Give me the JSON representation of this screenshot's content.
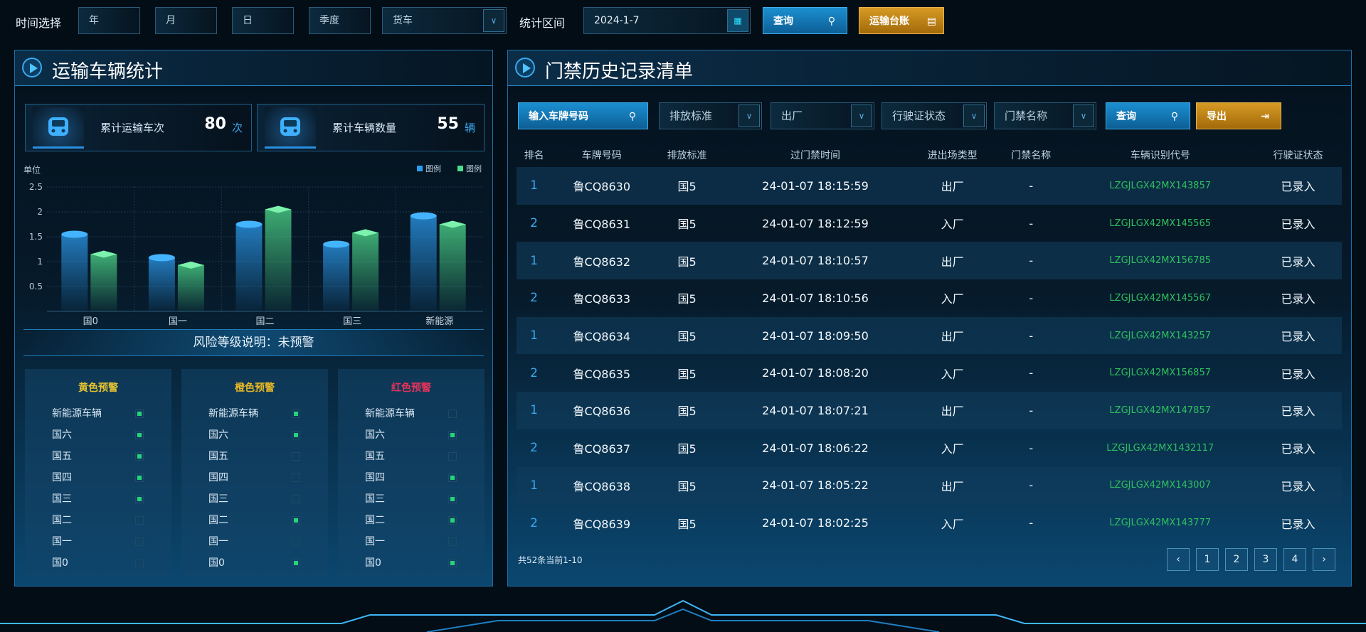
{
  "topbar": {
    "time_label": "时间选择",
    "year": "年",
    "month": "月",
    "day": "日",
    "quarter": "季度",
    "vehicle_type": "货车",
    "range_label": "统计区间",
    "date_value": "2024-1-7",
    "query": "查询",
    "ledger": "运输台账"
  },
  "left": {
    "title": "运输车辆统计",
    "stats": [
      {
        "label": "累计运输车次",
        "value": "80",
        "unit": "次"
      },
      {
        "label": "累计车辆数量",
        "value": "55",
        "unit": "辆"
      }
    ],
    "risk_label": "风险等级说明：未预警",
    "levels": [
      {
        "title": "黄色预警",
        "color": "#e8c430",
        "items": [
          {
            "name": "新能源车辆",
            "on": true
          },
          {
            "name": "国六",
            "on": true
          },
          {
            "name": "国五",
            "on": true
          },
          {
            "name": "国四",
            "on": true
          },
          {
            "name": "国三",
            "on": true
          },
          {
            "name": "国二",
            "on": false
          },
          {
            "name": "国一",
            "on": false
          },
          {
            "name": "国0",
            "on": false
          }
        ]
      },
      {
        "title": "橙色预警",
        "color": "#e8b825",
        "items": [
          {
            "name": "新能源车辆",
            "on": true
          },
          {
            "name": "国六",
            "on": true
          },
          {
            "name": "国五",
            "on": false
          },
          {
            "name": "国四",
            "on": false
          },
          {
            "name": "国三",
            "on": false
          },
          {
            "name": "国二",
            "on": true
          },
          {
            "name": "国一",
            "on": false
          },
          {
            "name": "国0",
            "on": true
          }
        ]
      },
      {
        "title": "红色预警",
        "color": "#e8335a",
        "items": [
          {
            "name": "新能源车辆",
            "on": false
          },
          {
            "name": "国六",
            "on": true
          },
          {
            "name": "国五",
            "on": false
          },
          {
            "name": "国四",
            "on": true
          },
          {
            "name": "国三",
            "on": true
          },
          {
            "name": "国二",
            "on": true
          },
          {
            "name": "国一",
            "on": false
          },
          {
            "name": "国0",
            "on": true
          }
        ]
      }
    ]
  },
  "chart_data": {
    "type": "bar",
    "ylabel": "单位",
    "categories": [
      "国0",
      "国一",
      "国二",
      "国三",
      "新能源"
    ],
    "ylim": [
      0,
      2.5
    ],
    "yticks": [
      "0.5",
      "1",
      "1.5",
      "2",
      "2.5"
    ],
    "grid": true,
    "legend_position": "top-right",
    "series": [
      {
        "name": "图例",
        "color": "#2c9cf0",
        "values": [
          1.55,
          1.08,
          1.75,
          1.35,
          1.92
        ]
      },
      {
        "name": "图例",
        "color": "#4fdc8c",
        "values": [
          1.15,
          0.93,
          2.05,
          1.58,
          1.75
        ]
      }
    ]
  },
  "right": {
    "title": "门禁历史记录清单",
    "filters": {
      "plate_placeholder": "输入车牌号码",
      "emission": "排放标准",
      "direction": "出厂",
      "license": "行驶证状态",
      "gate": "门禁名称",
      "query": "查询",
      "export": "导出"
    },
    "columns": [
      "排名",
      "车牌号码",
      "排放标准",
      "过门禁时间",
      "进出场类型",
      "门禁名称",
      "车辆识别代号",
      "行驶证状态"
    ],
    "rows": [
      [
        "1",
        "鲁CQ8630",
        "国5",
        "24-01-07 18:15:59",
        "出厂",
        "-",
        "LZGJLGX42MX143857",
        "已录入"
      ],
      [
        "2",
        "鲁CQ8631",
        "国5",
        "24-01-07 18:12:59",
        "入厂",
        "-",
        "LZGJLGX42MX145565",
        "已录入"
      ],
      [
        "1",
        "鲁CQ8632",
        "国5",
        "24-01-07 18:10:57",
        "出厂",
        "-",
        "LZGJLGX42MX156785",
        "已录入"
      ],
      [
        "2",
        "鲁CQ8633",
        "国5",
        "24-01-07 18:10:56",
        "入厂",
        "-",
        "LZGJLGX42MX145567",
        "已录入"
      ],
      [
        "1",
        "鲁CQ8634",
        "国5",
        "24-01-07 18:09:50",
        "出厂",
        "-",
        "LZGJLGX42MX143257",
        "已录入"
      ],
      [
        "2",
        "鲁CQ8635",
        "国5",
        "24-01-07 18:08:20",
        "入厂",
        "-",
        "LZGJLGX42MX156857",
        "已录入"
      ],
      [
        "1",
        "鲁CQ8636",
        "国5",
        "24-01-07 18:07:21",
        "出厂",
        "-",
        "LZGJLGX42MX147857",
        "已录入"
      ],
      [
        "2",
        "鲁CQ8637",
        "国5",
        "24-01-07 18:06:22",
        "入厂",
        "-",
        "LZGJLGX42MX1432117",
        "已录入"
      ],
      [
        "1",
        "鲁CQ8638",
        "国5",
        "24-01-07 18:05:22",
        "出厂",
        "-",
        "LZGJLGX42MX143007",
        "已录入"
      ],
      [
        "2",
        "鲁CQ8639",
        "国5",
        "24-01-07 18:02:25",
        "入厂",
        "-",
        "LZGJLGX42MX143777",
        "已录入"
      ]
    ],
    "footer": "共52条当前1-10",
    "pages": [
      "‹",
      "1",
      "2",
      "3",
      "4",
      "›"
    ]
  }
}
